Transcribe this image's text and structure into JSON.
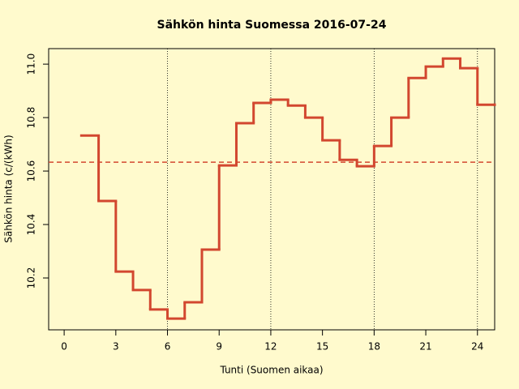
{
  "chart_data": {
    "type": "step",
    "title": "Sähkön hinta Suomessa 2016-07-24",
    "x_label": "Tunti (Suomen aikaa)",
    "y_label": "Sähkön hinta (c/(kWh)",
    "x": [
      1,
      2,
      3,
      4,
      5,
      6,
      7,
      8,
      9,
      10,
      11,
      12,
      13,
      14,
      15,
      16,
      17,
      18,
      19,
      20,
      21,
      22,
      23,
      24,
      25
    ],
    "series": [
      {
        "color": "#d2472f",
        "values": [
          10.733,
          10.488,
          10.224,
          10.155,
          10.082,
          10.048,
          10.109,
          10.306,
          10.621,
          10.779,
          10.855,
          10.867,
          10.845,
          10.8,
          10.715,
          10.642,
          10.618,
          10.694,
          10.8,
          10.948,
          10.991,
          11.021,
          10.985,
          10.848,
          10.848
        ]
      }
    ],
    "hline": 10.633,
    "hline_color": "#d2472f",
    "vlines": [
      6,
      12,
      18,
      24
    ],
    "xlim": [
      -0.9,
      25
    ],
    "ylim": [
      10.006,
      11.058
    ],
    "xticks": [
      0,
      3,
      6,
      9,
      12,
      15,
      18,
      21,
      24
    ],
    "yticks": [
      10.2,
      10.4,
      10.6,
      10.8,
      {
        "value": 11.0,
        "label": "11.0"
      }
    ]
  }
}
